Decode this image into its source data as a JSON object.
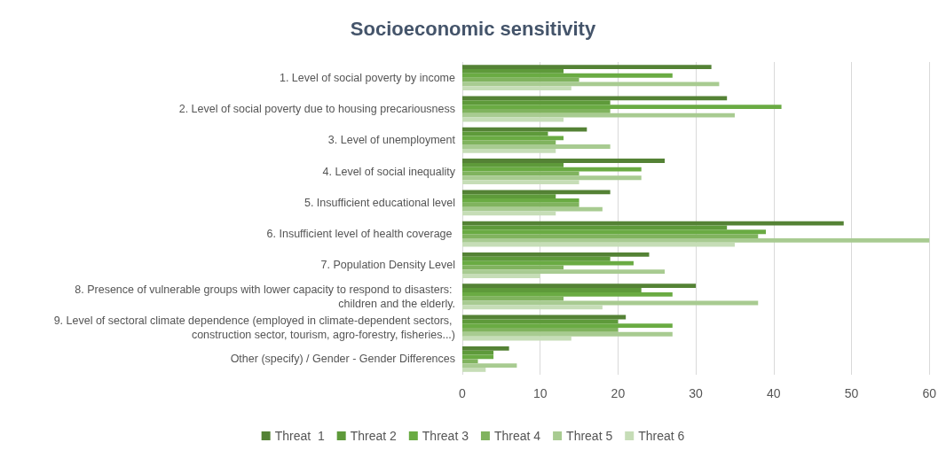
{
  "chart_data": {
    "type": "bar",
    "orientation": "horizontal",
    "title": "Socioeconomic sensitivity",
    "categories": [
      "1. Level of social poverty by income",
      "2. Level of social poverty due to housing precariousness",
      "3. Level of unemployment",
      "4. Level of social inequality",
      "5. Insufficient educational level",
      "6. Insufficient level of health coverage ",
      "7. Population Density Level",
      "8. Presence of vulnerable groups with lower capacity to respond to disasters: children and the elderly.",
      "9. Level of sectoral climate dependence (employed in climate-dependent sectors, construction sector, tourism, agro-forestry, fisheries...)",
      "Other (specify) / Gender - Gender Differences"
    ],
    "series": [
      {
        "name": "Threat  1",
        "color": "#548235",
        "values": [
          32,
          34,
          16,
          26,
          19,
          49,
          24,
          30,
          21,
          6
        ]
      },
      {
        "name": "Threat 2",
        "color": "#5e9a3a",
        "values": [
          13,
          19,
          11,
          13,
          12,
          34,
          19,
          23,
          20,
          4
        ]
      },
      {
        "name": "Threat 3",
        "color": "#6aab43",
        "values": [
          27,
          41,
          13,
          23,
          15,
          39,
          22,
          27,
          27,
          4
        ]
      },
      {
        "name": "Threat 4",
        "color": "#80b35e",
        "values": [
          15,
          19,
          12,
          15,
          15,
          38,
          13,
          13,
          20,
          2
        ]
      },
      {
        "name": "Threat 5",
        "color": "#a8cb91",
        "values": [
          33,
          35,
          19,
          23,
          18,
          60,
          26,
          38,
          27,
          7
        ]
      },
      {
        "name": "Threat 6",
        "color": "#c6ddb7",
        "values": [
          14,
          13,
          12,
          15,
          12,
          35,
          10,
          18,
          14,
          3
        ]
      }
    ],
    "xlim": [
      0,
      60
    ],
    "xticks": [
      0,
      10,
      20,
      30,
      40,
      50,
      60
    ],
    "grid": "x",
    "legend": "bottom"
  }
}
